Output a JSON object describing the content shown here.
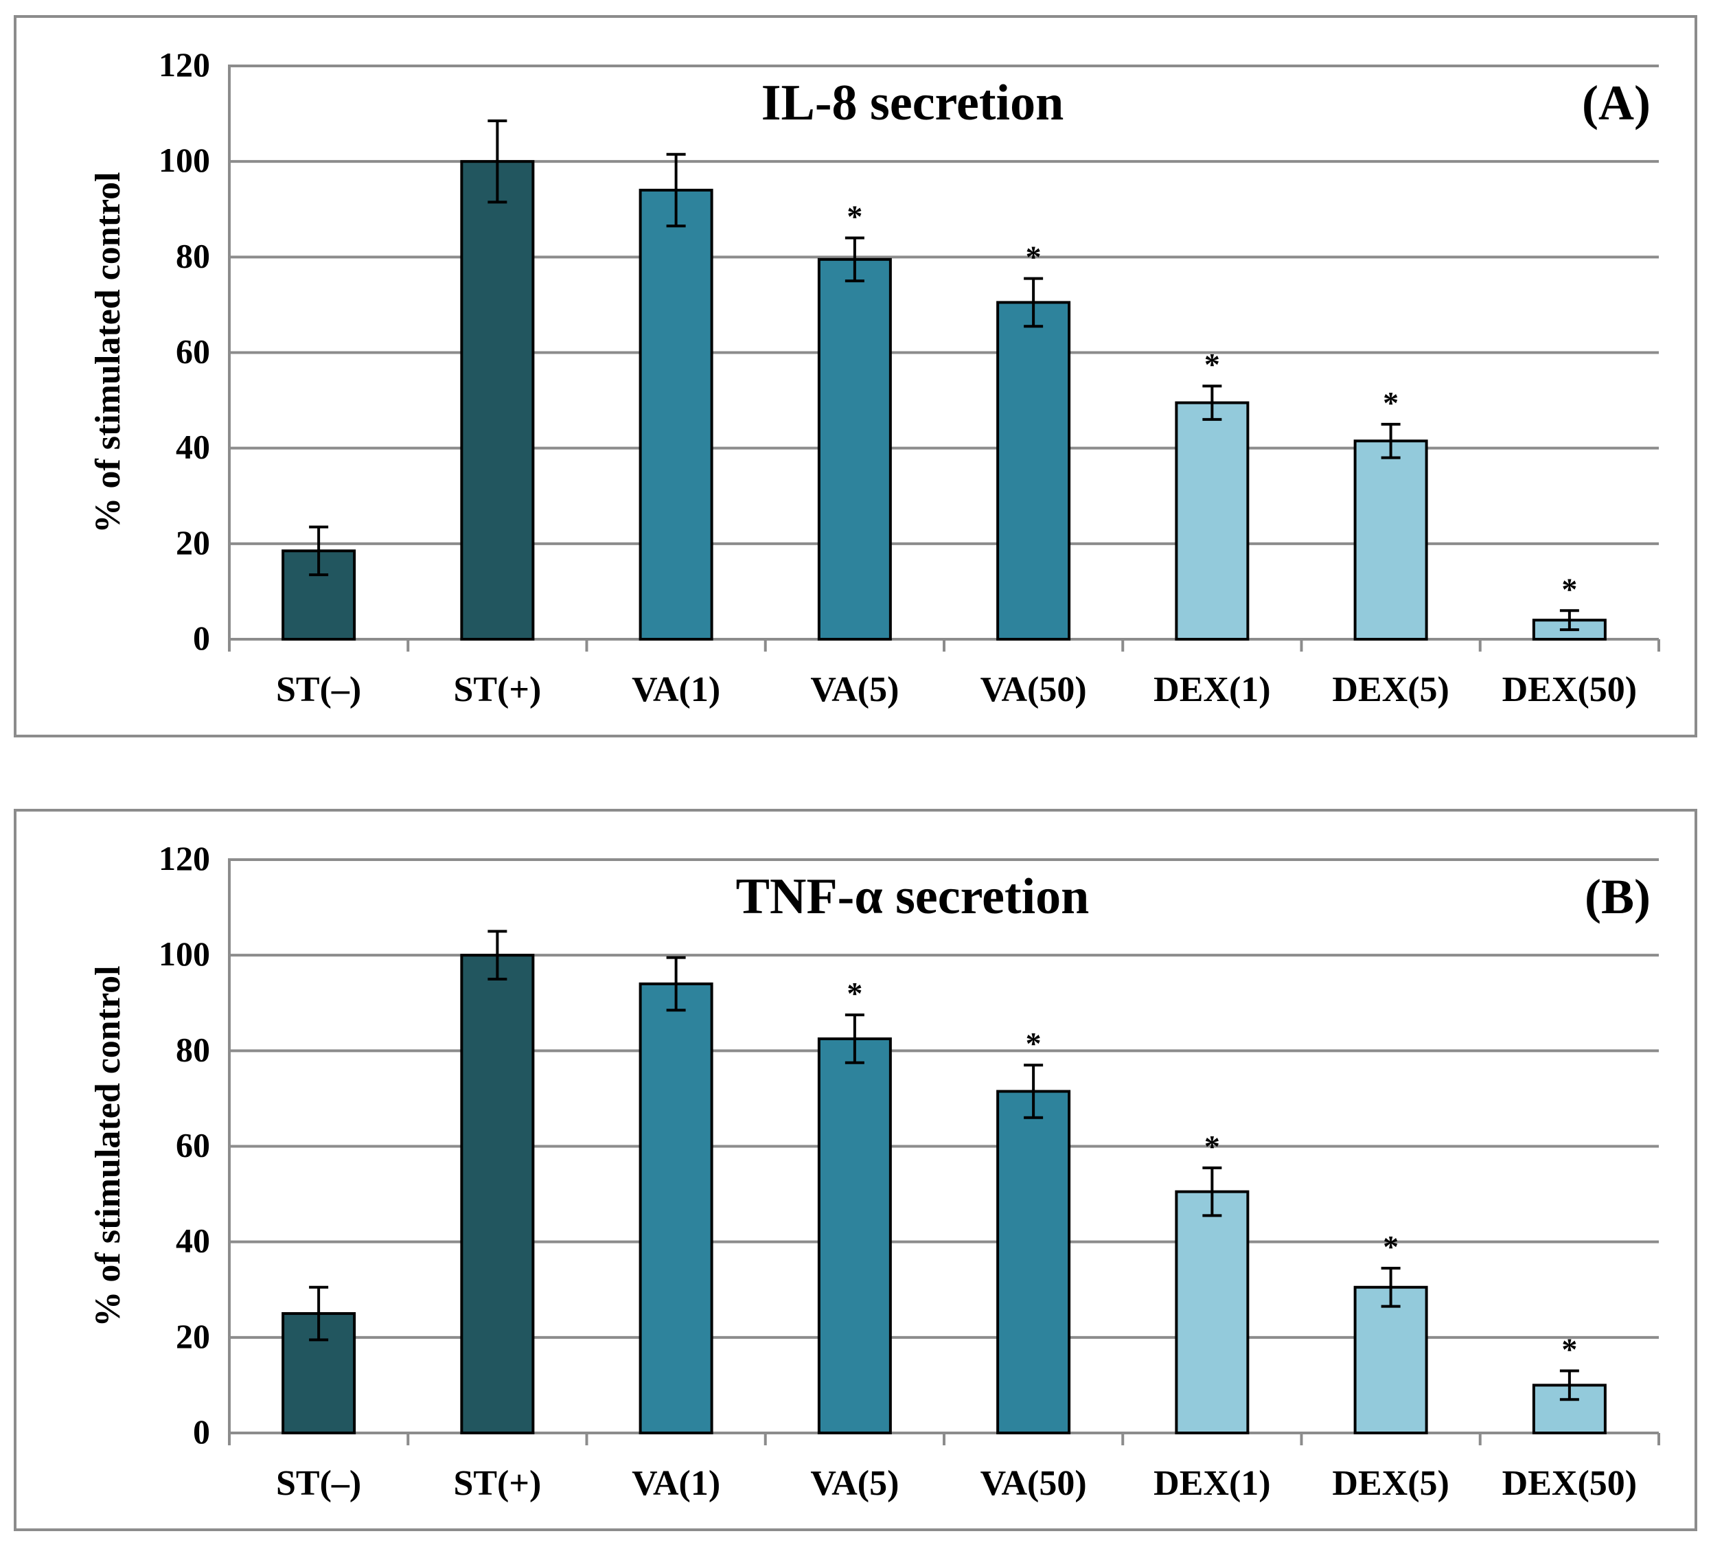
{
  "colors": {
    "dark": "#22565f",
    "mid": "#2e839c",
    "light": "#93cadb",
    "grid": "#8c8c8c",
    "border": "#8c8c8c"
  },
  "chart_data": [
    {
      "type": "bar",
      "title": "IL-8 secretion",
      "panel_label": "(A)",
      "ylabel": "% of stimulated control",
      "ylim": [
        0,
        120
      ],
      "yticks": [
        "0",
        "20",
        "40",
        "60",
        "80",
        "100",
        "120"
      ],
      "grid": true,
      "categories": [
        "ST(–)",
        "ST(+)",
        "VA(1)",
        "VA(5)",
        "VA(50)",
        "DEX(1)",
        "DEX(5)",
        "DEX(50)"
      ],
      "values": [
        18.5,
        100,
        94,
        79.5,
        70.5,
        49.5,
        41.5,
        4
      ],
      "errors": [
        5,
        8.5,
        7.5,
        4.5,
        5,
        3.5,
        3.5,
        2
      ],
      "significance": [
        "",
        "",
        "",
        "*",
        "*",
        "*",
        "*",
        "*"
      ],
      "color_groups": [
        "dark",
        "dark",
        "mid",
        "mid",
        "mid",
        "light",
        "light",
        "light"
      ]
    },
    {
      "type": "bar",
      "title": "TNF-α secretion",
      "panel_label": "(B)",
      "ylabel": "% of stimulated control",
      "ylim": [
        0,
        120
      ],
      "yticks": [
        "0",
        "20",
        "40",
        "60",
        "80",
        "100",
        "120"
      ],
      "grid": true,
      "categories": [
        "ST(–)",
        "ST(+)",
        "VA(1)",
        "VA(5)",
        "VA(50)",
        "DEX(1)",
        "DEX(5)",
        "DEX(50)"
      ],
      "values": [
        25,
        100,
        94,
        82.5,
        71.5,
        50.5,
        30.5,
        10
      ],
      "errors": [
        5.5,
        5,
        5.5,
        5,
        5.5,
        5,
        4,
        3
      ],
      "significance": [
        "",
        "",
        "",
        "*",
        "*",
        "*",
        "*",
        "*"
      ],
      "color_groups": [
        "dark",
        "dark",
        "mid",
        "mid",
        "mid",
        "light",
        "light",
        "light"
      ]
    }
  ]
}
